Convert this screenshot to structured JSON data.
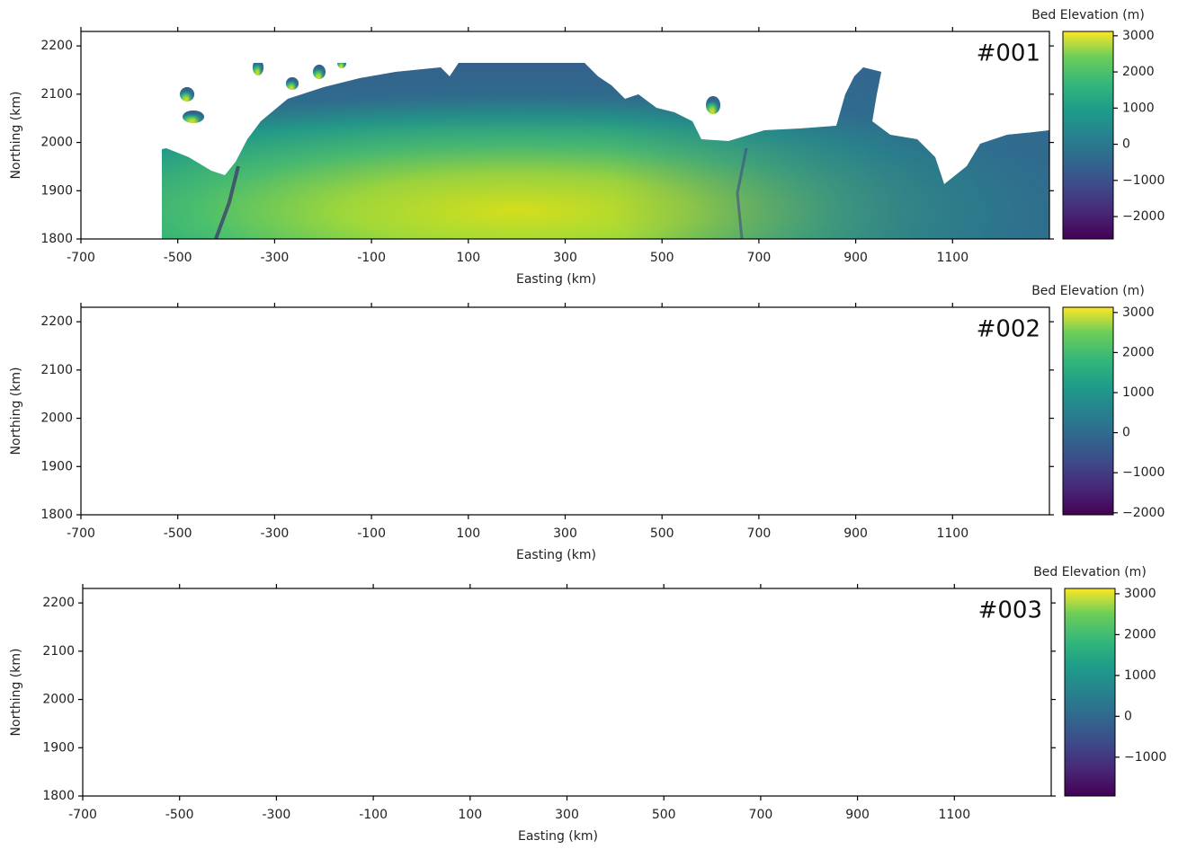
{
  "chart_data": [
    {
      "type": "map",
      "panel_label": "#001",
      "x_label": "Easting (km)",
      "y_label": "Northing (km)",
      "colorbar_label": "Bed Elevation (m)",
      "colormap": "viridis",
      "xlim": [
        -700,
        1300
      ],
      "ylim": [
        1800,
        2230
      ],
      "xticks": [
        -700,
        -500,
        -300,
        -100,
        100,
        300,
        500,
        700,
        900,
        1100
      ],
      "yticks": [
        1800,
        1900,
        2000,
        2100,
        2200
      ],
      "clim": [
        -2620,
        3120
      ],
      "cticks": [
        {
          "value": -2000,
          "label": "−2000"
        },
        {
          "value": -1000,
          "label": "−1000"
        },
        0,
        1000,
        2000,
        3000
      ]
    },
    {
      "type": "map",
      "panel_label": "#002",
      "x_label": "Easting (km)",
      "y_label": "Northing (km)",
      "colorbar_label": "Bed Elevation (m)",
      "colormap": "viridis",
      "xlim": [
        -700,
        1300
      ],
      "ylim": [
        1800,
        2230
      ],
      "xticks": [
        -700,
        -500,
        -300,
        -100,
        100,
        300,
        500,
        700,
        900,
        1100
      ],
      "yticks": [
        1800,
        1900,
        2000,
        2100,
        2200
      ],
      "clim": [
        -2050,
        3130
      ],
      "cticks": [
        {
          "value": -2000,
          "label": "−2000"
        },
        {
          "value": -1000,
          "label": "−1000"
        },
        0,
        1000,
        2000,
        3000
      ]
    },
    {
      "type": "map",
      "panel_label": "#003",
      "x_label": "Easting (km)",
      "y_label": "Northing (km)",
      "colorbar_label": "Bed Elevation (m)",
      "colormap": "viridis",
      "xlim": [
        -700,
        1300
      ],
      "ylim": [
        1800,
        2230
      ],
      "xticks": [
        -700,
        -500,
        -300,
        -100,
        100,
        300,
        500,
        700,
        900,
        1100
      ],
      "yticks": [
        1800,
        1900,
        2000,
        2100,
        2200
      ],
      "clim": [
        -1950,
        3130
      ],
      "cticks": [
        {
          "value": -1000,
          "label": "−1000"
        },
        0,
        1000,
        2000,
        3000
      ]
    }
  ]
}
